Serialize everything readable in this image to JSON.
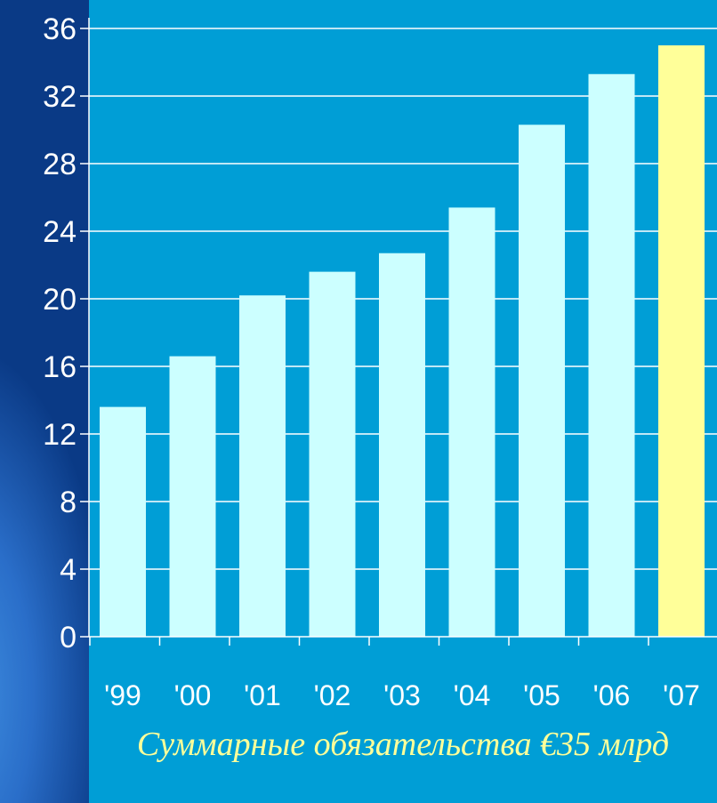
{
  "chart_data": {
    "type": "bar",
    "categories": [
      "'99",
      "'00",
      "'01",
      "'02",
      "'03",
      "'04",
      "'05",
      "'06",
      "'07"
    ],
    "values": [
      13.6,
      16.6,
      20.2,
      21.6,
      22.7,
      25.4,
      30.3,
      33.3,
      35.0
    ],
    "ylim": [
      0,
      36
    ],
    "yticks": [
      0,
      4,
      8,
      12,
      16,
      20,
      24,
      28,
      32,
      36
    ],
    "grid": true,
    "bar_color": "#ccffff",
    "highlight_index": 8,
    "highlight_color": "#ffff99",
    "caption": "Суммарные обязательства €35 млрд"
  },
  "colors": {
    "background": "#0a3a86",
    "plot_area": "#009ed6",
    "grid": "#ffffff",
    "text": "#ffffff",
    "caption": "#ffff99"
  }
}
